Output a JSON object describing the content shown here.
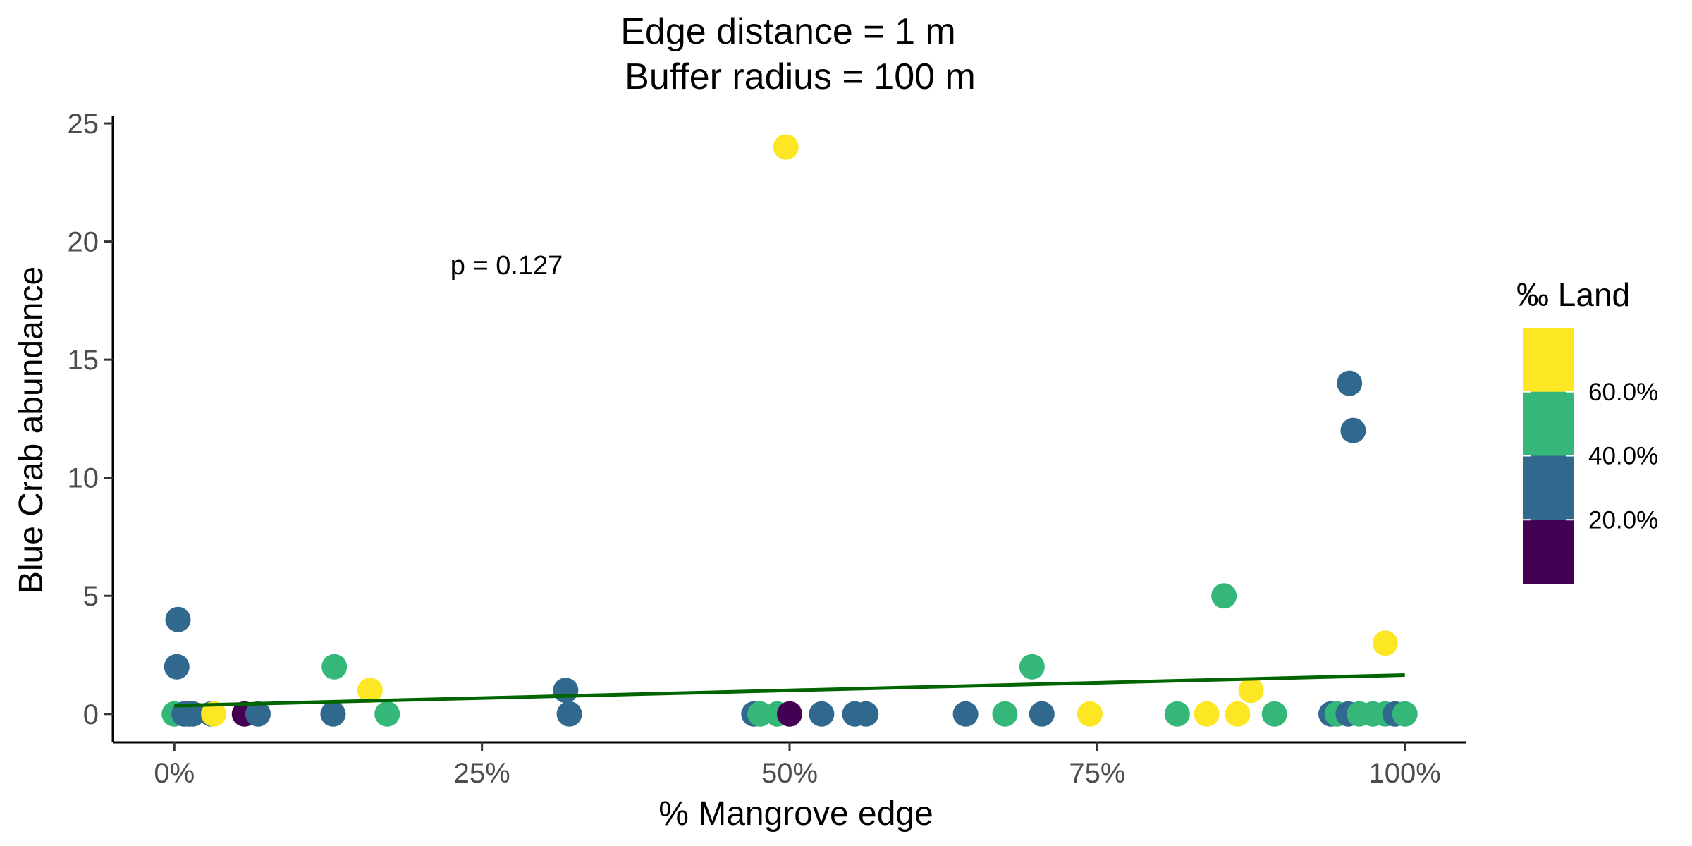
{
  "chart_data": {
    "type": "scatter",
    "title_lines": [
      "Edge distance = 1 m",
      "Buffer radius = 100 m"
    ],
    "xlabel": "% Mangrove edge",
    "ylabel": "Blue Crab abundance",
    "xlim": [
      -0.05,
      1.05
    ],
    "ylim": [
      -1.2,
      25.3
    ],
    "x_ticks": [
      {
        "value": 0,
        "label": "0%"
      },
      {
        "value": 0.25,
        "label": "25%"
      },
      {
        "value": 0.5,
        "label": "50%"
      },
      {
        "value": 0.75,
        "label": "75%"
      },
      {
        "value": 1,
        "label": "100%"
      }
    ],
    "y_ticks": [
      {
        "value": 0,
        "label": "0"
      },
      {
        "value": 5,
        "label": "5"
      },
      {
        "value": 10,
        "label": "10"
      },
      {
        "value": 15,
        "label": "15"
      },
      {
        "value": 20,
        "label": "20"
      },
      {
        "value": 25,
        "label": "25"
      }
    ],
    "grid": false,
    "annotation": {
      "text": "p = 0.127",
      "x": 0.27,
      "y": 19
    },
    "trend_line": {
      "color": "#006400",
      "x": [
        0,
        1
      ],
      "y": [
        0.35,
        1.65
      ]
    },
    "legend": {
      "title": "‰ Land",
      "placement": "right",
      "bins": [
        {
          "color": "#FDE725"
        },
        {
          "color": "#35B779",
          "label": "60.0%"
        },
        {
          "color": "#31688E",
          "label": "40.0%"
        },
        {
          "color": "#440154",
          "label": "20.0%"
        }
      ]
    },
    "colors": {
      "yellow": "#FDE725",
      "green": "#35B779",
      "blue": "#31688E",
      "purple": "#440154"
    },
    "points": [
      {
        "x": 0.003,
        "y": 4,
        "c": "blue"
      },
      {
        "x": 0.002,
        "y": 2,
        "c": "blue"
      },
      {
        "x": 0.0,
        "y": 0,
        "c": "green"
      },
      {
        "x": 0.008,
        "y": 0,
        "c": "blue"
      },
      {
        "x": 0.012,
        "y": 0,
        "c": "blue"
      },
      {
        "x": 0.015,
        "y": 0,
        "c": "blue"
      },
      {
        "x": 0.03,
        "y": 0,
        "c": "blue"
      },
      {
        "x": 0.032,
        "y": 0,
        "c": "yellow"
      },
      {
        "x": 0.057,
        "y": 0,
        "c": "purple"
      },
      {
        "x": 0.068,
        "y": 0,
        "c": "blue"
      },
      {
        "x": 0.13,
        "y": 2,
        "c": "green"
      },
      {
        "x": 0.129,
        "y": 0,
        "c": "blue"
      },
      {
        "x": 0.159,
        "y": 1,
        "c": "yellow"
      },
      {
        "x": 0.173,
        "y": 0,
        "c": "green"
      },
      {
        "x": 0.318,
        "y": 1,
        "c": "blue"
      },
      {
        "x": 0.321,
        "y": 0,
        "c": "blue"
      },
      {
        "x": 0.471,
        "y": 0,
        "c": "blue"
      },
      {
        "x": 0.476,
        "y": 0,
        "c": "green"
      },
      {
        "x": 0.49,
        "y": 0,
        "c": "green"
      },
      {
        "x": 0.497,
        "y": 24,
        "c": "yellow"
      },
      {
        "x": 0.5,
        "y": 0,
        "c": "purple"
      },
      {
        "x": 0.526,
        "y": 0,
        "c": "blue"
      },
      {
        "x": 0.553,
        "y": 0,
        "c": "blue"
      },
      {
        "x": 0.562,
        "y": 0,
        "c": "blue"
      },
      {
        "x": 0.643,
        "y": 0,
        "c": "blue"
      },
      {
        "x": 0.675,
        "y": 0,
        "c": "green"
      },
      {
        "x": 0.697,
        "y": 2,
        "c": "green"
      },
      {
        "x": 0.705,
        "y": 0,
        "c": "blue"
      },
      {
        "x": 0.744,
        "y": 0,
        "c": "yellow"
      },
      {
        "x": 0.815,
        "y": 0,
        "c": "green"
      },
      {
        "x": 0.839,
        "y": 0,
        "c": "yellow"
      },
      {
        "x": 0.853,
        "y": 5,
        "c": "green"
      },
      {
        "x": 0.864,
        "y": 0,
        "c": "yellow"
      },
      {
        "x": 0.875,
        "y": 1,
        "c": "yellow"
      },
      {
        "x": 0.894,
        "y": 0,
        "c": "green"
      },
      {
        "x": 0.94,
        "y": 0,
        "c": "blue"
      },
      {
        "x": 0.945,
        "y": 0,
        "c": "green"
      },
      {
        "x": 0.954,
        "y": 0,
        "c": "blue"
      },
      {
        "x": 0.955,
        "y": 14,
        "c": "blue"
      },
      {
        "x": 0.958,
        "y": 12,
        "c": "blue"
      },
      {
        "x": 0.963,
        "y": 0,
        "c": "green"
      },
      {
        "x": 0.974,
        "y": 0,
        "c": "green"
      },
      {
        "x": 0.984,
        "y": 3,
        "c": "yellow"
      },
      {
        "x": 0.984,
        "y": 0,
        "c": "green"
      },
      {
        "x": 0.992,
        "y": 0,
        "c": "blue"
      },
      {
        "x": 1.0,
        "y": 0,
        "c": "green"
      }
    ]
  }
}
